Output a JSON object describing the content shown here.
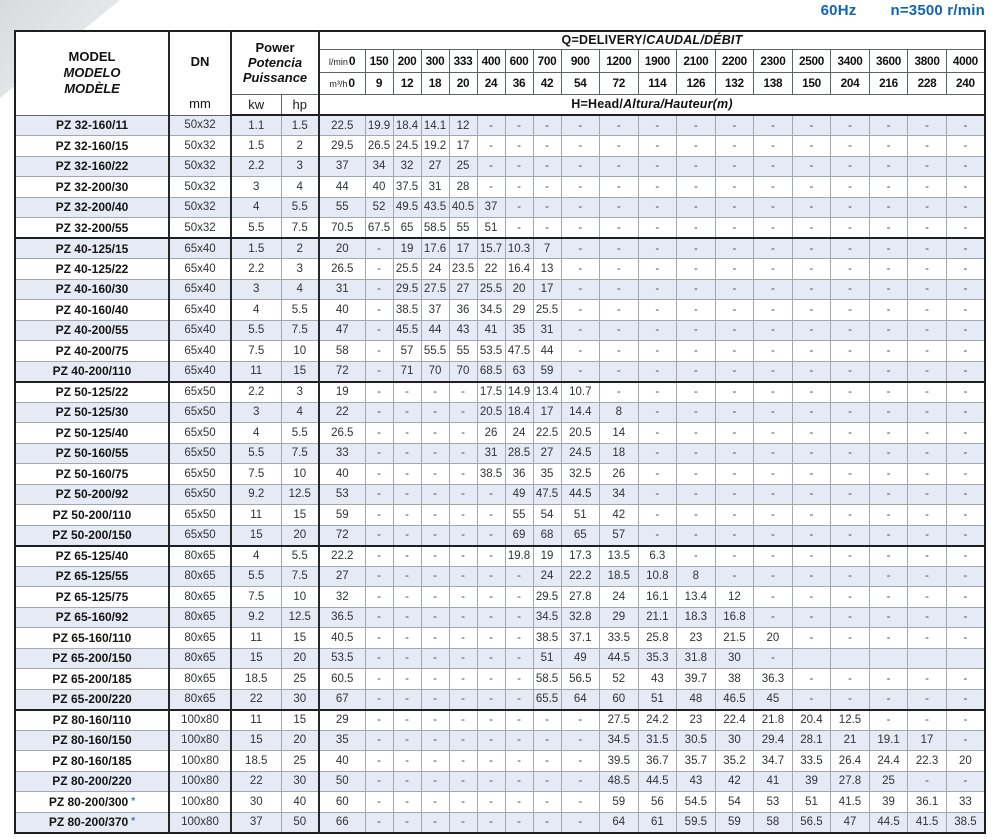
{
  "note": {
    "frequency": "60Hz",
    "speed": "n=3500 r/min"
  },
  "header": {
    "model_lines": [
      "MODEL",
      "MODELO",
      "MODÈLE"
    ],
    "dn_label": "DN",
    "dn_unit": "mm",
    "power_lines": [
      "Power",
      "Potencia",
      "Puissance"
    ],
    "power_units": [
      "kw",
      "hp"
    ],
    "delivery_bold": "Q=DELIVERY/",
    "delivery_italic": "CAUDAL/DÉBIT",
    "head_bold": "H=Head/",
    "head_italic": "Altura/Hauteur(m)",
    "lmin_unit": "l/min",
    "m3h_unit": "m³/h",
    "zero": "0",
    "flow_lmin": [
      "150",
      "200",
      "300",
      "333",
      "400",
      "600",
      "700",
      "900",
      "1200",
      "1900",
      "2100",
      "2200",
      "2300",
      "2500",
      "3400",
      "3600",
      "3800",
      "4000"
    ],
    "flow_m3h": [
      "9",
      "12",
      "18",
      "20",
      "24",
      "36",
      "42",
      "54",
      "72",
      "114",
      "126",
      "132",
      "138",
      "150",
      "204",
      "216",
      "228",
      "240"
    ]
  },
  "rows": [
    {
      "model": "PZ 32-160/11",
      "dn": "50x32",
      "kw": "1.1",
      "hp": "1.5",
      "heads": [
        "22.5",
        "19.9",
        "18.4",
        "14.1",
        "12",
        "-",
        "-",
        "-",
        "-",
        "-",
        "-",
        "-",
        "-",
        "-",
        "-",
        "-",
        "-",
        "-",
        "-"
      ]
    },
    {
      "model": "PZ 32-160/15",
      "dn": "50x32",
      "kw": "1.5",
      "hp": "2",
      "heads": [
        "29.5",
        "26.5",
        "24.5",
        "19.2",
        "17",
        "-",
        "-",
        "-",
        "-",
        "-",
        "-",
        "-",
        "-",
        "-",
        "-",
        "-",
        "-",
        "-",
        "-"
      ]
    },
    {
      "model": "PZ 32-160/22",
      "dn": "50x32",
      "kw": "2.2",
      "hp": "3",
      "heads": [
        "37",
        "34",
        "32",
        "27",
        "25",
        "-",
        "-",
        "-",
        "-",
        "-",
        "-",
        "-",
        "-",
        "-",
        "-",
        "-",
        "-",
        "-",
        "-"
      ]
    },
    {
      "model": "PZ 32-200/30",
      "dn": "50x32",
      "kw": "3",
      "hp": "4",
      "heads": [
        "44",
        "40",
        "37.5",
        "31",
        "28",
        "-",
        "-",
        "-",
        "-",
        "-",
        "-",
        "-",
        "-",
        "-",
        "-",
        "-",
        "-",
        "-",
        "-"
      ]
    },
    {
      "model": "PZ 32-200/40",
      "dn": "50x32",
      "kw": "4",
      "hp": "5.5",
      "heads": [
        "55",
        "52",
        "49.5",
        "43.5",
        "40.5",
        "37",
        "-",
        "-",
        "-",
        "-",
        "-",
        "-",
        "-",
        "-",
        "-",
        "-",
        "-",
        "-",
        "-"
      ]
    },
    {
      "model": "PZ 32-200/55",
      "dn": "50x32",
      "kw": "5.5",
      "hp": "7.5",
      "group_end": true,
      "heads": [
        "70.5",
        "67.5",
        "65",
        "58.5",
        "55",
        "51",
        "-",
        "-",
        "-",
        "-",
        "-",
        "-",
        "-",
        "-",
        "-",
        "-",
        "-",
        "-",
        "-"
      ]
    },
    {
      "model": "PZ 40-125/15",
      "dn": "65x40",
      "kw": "1.5",
      "hp": "2",
      "heads": [
        "20",
        "-",
        "19",
        "17.6",
        "17",
        "15.7",
        "10.3",
        "7",
        "-",
        "-",
        "-",
        "-",
        "-",
        "-",
        "-",
        "-",
        "-",
        "-",
        "-"
      ]
    },
    {
      "model": "PZ 40-125/22",
      "dn": "65x40",
      "kw": "2.2",
      "hp": "3",
      "heads": [
        "26.5",
        "-",
        "25.5",
        "24",
        "23.5",
        "22",
        "16.4",
        "13",
        "-",
        "-",
        "-",
        "-",
        "-",
        "-",
        "-",
        "-",
        "-",
        "-",
        "-"
      ]
    },
    {
      "model": "PZ 40-160/30",
      "dn": "65x40",
      "kw": "3",
      "hp": "4",
      "heads": [
        "31",
        "-",
        "29.5",
        "27.5",
        "27",
        "25.5",
        "20",
        "17",
        "-",
        "-",
        "-",
        "-",
        "-",
        "-",
        "-",
        "-",
        "-",
        "-",
        "-"
      ]
    },
    {
      "model": "PZ 40-160/40",
      "dn": "65x40",
      "kw": "4",
      "hp": "5.5",
      "heads": [
        "40",
        "-",
        "38.5",
        "37",
        "36",
        "34.5",
        "29",
        "25.5",
        "-",
        "-",
        "-",
        "-",
        "-",
        "-",
        "-",
        "-",
        "-",
        "-",
        "-"
      ]
    },
    {
      "model": "PZ 40-200/55",
      "dn": "65x40",
      "kw": "5.5",
      "hp": "7.5",
      "heads": [
        "47",
        "-",
        "45.5",
        "44",
        "43",
        "41",
        "35",
        "31",
        "-",
        "-",
        "-",
        "-",
        "-",
        "-",
        "-",
        "-",
        "-",
        "-",
        "-"
      ]
    },
    {
      "model": "PZ 40-200/75",
      "dn": "65x40",
      "kw": "7.5",
      "hp": "10",
      "heads": [
        "58",
        "-",
        "57",
        "55.5",
        "55",
        "53.5",
        "47.5",
        "44",
        "-",
        "-",
        "-",
        "-",
        "-",
        "-",
        "-",
        "-",
        "-",
        "-",
        "-"
      ]
    },
    {
      "model": "PZ 40-200/110",
      "dn": "65x40",
      "kw": "11",
      "hp": "15",
      "group_end": true,
      "heads": [
        "72",
        "-",
        "71",
        "70",
        "70",
        "68.5",
        "63",
        "59",
        "-",
        "-",
        "-",
        "-",
        "-",
        "-",
        "-",
        "-",
        "-",
        "-",
        "-"
      ]
    },
    {
      "model": "PZ 50-125/22",
      "dn": "65x50",
      "kw": "2.2",
      "hp": "3",
      "heads": [
        "19",
        "-",
        "-",
        "-",
        "-",
        "17.5",
        "14.9",
        "13.4",
        "10.7",
        "-",
        "-",
        "-",
        "-",
        "-",
        "-",
        "-",
        "-",
        "-",
        "-"
      ]
    },
    {
      "model": "PZ 50-125/30",
      "dn": "65x50",
      "kw": "3",
      "hp": "4",
      "heads": [
        "22",
        "-",
        "-",
        "-",
        "-",
        "20.5",
        "18.4",
        "17",
        "14.4",
        "8",
        "-",
        "-",
        "-",
        "-",
        "-",
        "-",
        "-",
        "-",
        "-"
      ]
    },
    {
      "model": "PZ 50-125/40",
      "dn": "65x50",
      "kw": "4",
      "hp": "5.5",
      "heads": [
        "26.5",
        "-",
        "-",
        "-",
        "-",
        "26",
        "24",
        "22.5",
        "20.5",
        "14",
        "-",
        "-",
        "-",
        "-",
        "-",
        "-",
        "-",
        "-",
        "-"
      ]
    },
    {
      "model": "PZ 50-160/55",
      "dn": "65x50",
      "kw": "5.5",
      "hp": "7.5",
      "heads": [
        "33",
        "-",
        "-",
        "-",
        "-",
        "31",
        "28.5",
        "27",
        "24.5",
        "18",
        "-",
        "-",
        "-",
        "-",
        "-",
        "-",
        "-",
        "-",
        "-"
      ]
    },
    {
      "model": "PZ 50-160/75",
      "dn": "65x50",
      "kw": "7.5",
      "hp": "10",
      "heads": [
        "40",
        "-",
        "-",
        "-",
        "-",
        "38.5",
        "36",
        "35",
        "32.5",
        "26",
        "-",
        "-",
        "-",
        "-",
        "-",
        "-",
        "-",
        "-",
        "-"
      ]
    },
    {
      "model": "PZ 50-200/92",
      "dn": "65x50",
      "kw": "9.2",
      "hp": "12.5",
      "heads": [
        "53",
        "-",
        "-",
        "-",
        "-",
        "-",
        "49",
        "47.5",
        "44.5",
        "34",
        "-",
        "-",
        "-",
        "-",
        "-",
        "-",
        "-",
        "-",
        "-"
      ]
    },
    {
      "model": "PZ 50-200/110",
      "dn": "65x50",
      "kw": "11",
      "hp": "15",
      "heads": [
        "59",
        "-",
        "-",
        "-",
        "-",
        "-",
        "55",
        "54",
        "51",
        "42",
        "-",
        "-",
        "-",
        "-",
        "-",
        "-",
        "-",
        "-",
        "-"
      ]
    },
    {
      "model": "PZ 50-200/150",
      "dn": "65x50",
      "kw": "15",
      "hp": "20",
      "group_end": true,
      "heads": [
        "72",
        "-",
        "-",
        "-",
        "-",
        "-",
        "69",
        "68",
        "65",
        "57",
        "-",
        "-",
        "-",
        "-",
        "-",
        "-",
        "-",
        "-",
        "-"
      ]
    },
    {
      "model": "PZ 65-125/40",
      "dn": "80x65",
      "kw": "4",
      "hp": "5.5",
      "heads": [
        "22.2",
        "-",
        "-",
        "-",
        "-",
        "-",
        "19.8",
        "19",
        "17.3",
        "13.5",
        "6.3",
        "-",
        "-",
        "-",
        "-",
        "-",
        "-",
        "-",
        "-"
      ]
    },
    {
      "model": "PZ 65-125/55",
      "dn": "80x65",
      "kw": "5.5",
      "hp": "7.5",
      "heads": [
        "27",
        "-",
        "-",
        "-",
        "-",
        "-",
        "-",
        "24",
        "22.2",
        "18.5",
        "10.8",
        "8",
        "-",
        "-",
        "-",
        "-",
        "-",
        "-",
        "-"
      ]
    },
    {
      "model": "PZ 65-125/75",
      "dn": "80x65",
      "kw": "7.5",
      "hp": "10",
      "heads": [
        "32",
        "-",
        "-",
        "-",
        "-",
        "-",
        "-",
        "29.5",
        "27.8",
        "24",
        "16.1",
        "13.4",
        "12",
        "-",
        "-",
        "-",
        "-",
        "-",
        "-"
      ]
    },
    {
      "model": "PZ 65-160/92",
      "dn": "80x65",
      "kw": "9.2",
      "hp": "12.5",
      "heads": [
        "36.5",
        "-",
        "-",
        "-",
        "-",
        "-",
        "-",
        "34.5",
        "32.8",
        "29",
        "21.1",
        "18.3",
        "16.8",
        "-",
        "-",
        "-",
        "-",
        "-",
        "-"
      ]
    },
    {
      "model": "PZ 65-160/110",
      "dn": "80x65",
      "kw": "11",
      "hp": "15",
      "heads": [
        "40.5",
        "-",
        "-",
        "-",
        "-",
        "-",
        "-",
        "38.5",
        "37.1",
        "33.5",
        "25.8",
        "23",
        "21.5",
        "20",
        "-",
        "-",
        "-",
        "-",
        "-"
      ]
    },
    {
      "model": "PZ 65-200/150",
      "dn": "80x65",
      "kw": "15",
      "hp": "20",
      "heads": [
        "53.5",
        "-",
        "-",
        "-",
        "-",
        "-",
        "-",
        "51",
        "49",
        "44.5",
        "35.3",
        "31.8",
        "30",
        "-",
        "",
        "",
        "",
        "",
        ""
      ]
    },
    {
      "model": "PZ 65-200/185",
      "dn": "80x65",
      "kw": "18.5",
      "hp": "25",
      "heads": [
        "60.5",
        "-",
        "-",
        "-",
        "-",
        "-",
        "-",
        "58.5",
        "56.5",
        "52",
        "43",
        "39.7",
        "38",
        "36.3",
        "-",
        "-",
        "-",
        "-",
        "-"
      ]
    },
    {
      "model": "PZ 65-200/220",
      "dn": "80x65",
      "kw": "22",
      "hp": "30",
      "group_end": true,
      "heads": [
        "67",
        "-",
        "-",
        "-",
        "-",
        "-",
        "-",
        "65.5",
        "64",
        "60",
        "51",
        "48",
        "46.5",
        "45",
        "-",
        "-",
        "-",
        "-",
        "-"
      ]
    },
    {
      "model": "PZ 80-160/110",
      "dn": "100x80",
      "kw": "11",
      "hp": "15",
      "heads": [
        "29",
        "-",
        "-",
        "-",
        "-",
        "-",
        "-",
        "-",
        "-",
        "27.5",
        "24.2",
        "23",
        "22.4",
        "21.8",
        "20.4",
        "12.5",
        "-",
        "-",
        "-"
      ]
    },
    {
      "model": "PZ 80-160/150",
      "dn": "100x80",
      "kw": "15",
      "hp": "20",
      "heads": [
        "35",
        "-",
        "-",
        "-",
        "-",
        "-",
        "-",
        "-",
        "-",
        "34.5",
        "31.5",
        "30.5",
        "30",
        "29.4",
        "28.1",
        "21",
        "19.1",
        "17",
        "-"
      ]
    },
    {
      "model": "PZ 80-160/185",
      "dn": "100x80",
      "kw": "18.5",
      "hp": "25",
      "heads": [
        "40",
        "-",
        "-",
        "-",
        "-",
        "-",
        "-",
        "-",
        "-",
        "39.5",
        "36.7",
        "35.7",
        "35.2",
        "34.7",
        "33.5",
        "26.4",
        "24.4",
        "22.3",
        "20"
      ]
    },
    {
      "model": "PZ 80-200/220",
      "dn": "100x80",
      "kw": "22",
      "hp": "30",
      "heads": [
        "50",
        "-",
        "-",
        "-",
        "-",
        "-",
        "-",
        "-",
        "-",
        "48.5",
        "44.5",
        "43",
        "42",
        "41",
        "39",
        "27.8",
        "25",
        "-",
        "-"
      ]
    },
    {
      "model": "PZ 80-200/300",
      "star": true,
      "dn": "100x80",
      "kw": "30",
      "hp": "40",
      "heads": [
        "60",
        "-",
        "-",
        "-",
        "-",
        "-",
        "-",
        "-",
        "-",
        "59",
        "56",
        "54.5",
        "54",
        "53",
        "51",
        "41.5",
        "39",
        "36.1",
        "33"
      ]
    },
    {
      "model": "PZ 80-200/370",
      "star": true,
      "dn": "100x80",
      "kw": "37",
      "hp": "50",
      "heads": [
        "66",
        "-",
        "-",
        "-",
        "-",
        "-",
        "-",
        "-",
        "-",
        "64",
        "61",
        "59.5",
        "59",
        "58",
        "56.5",
        "47",
        "44.5",
        "41.5",
        "38.5"
      ]
    }
  ]
}
